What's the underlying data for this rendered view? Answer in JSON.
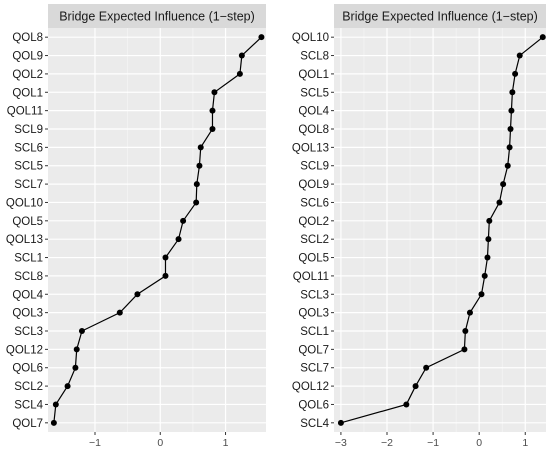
{
  "chart_data": [
    {
      "type": "line",
      "title": "Bridge Expected Influence (1−step)",
      "xlim": [
        -1.72,
        1.62
      ],
      "x_ticks": [
        -1,
        0,
        1
      ],
      "x_tick_labels": [
        "−1",
        "0",
        "1"
      ],
      "grid": true,
      "categories": [
        "QOL8",
        "QOL9",
        "QOL2",
        "QOL1",
        "QOL11",
        "SCL9",
        "SCL6",
        "SCL5",
        "SCL7",
        "QOL10",
        "QOL5",
        "QOL13",
        "SCL1",
        "SCL8",
        "QOL4",
        "QOL3",
        "SCL3",
        "QOL12",
        "QOL6",
        "SCL2",
        "SCL4",
        "QOL7"
      ],
      "values": [
        1.55,
        1.25,
        1.22,
        0.83,
        0.8,
        0.8,
        0.62,
        0.6,
        0.56,
        0.55,
        0.35,
        0.28,
        0.08,
        0.08,
        -0.35,
        -0.62,
        -1.2,
        -1.28,
        -1.3,
        -1.42,
        -1.6,
        -1.63
      ]
    },
    {
      "type": "line",
      "title": "Bridge Expected Influence (1−step)",
      "xlim": [
        -3.15,
        1.45
      ],
      "x_ticks": [
        -3,
        -2,
        -1,
        0,
        1
      ],
      "x_tick_labels": [
        "−3",
        "−2",
        "−1",
        "0",
        "1"
      ],
      "grid": true,
      "categories": [
        "QOL10",
        "SCL8",
        "QOL1",
        "SCL5",
        "QOL4",
        "QOL8",
        "QOL13",
        "SCL9",
        "QOL9",
        "SCL6",
        "QOL2",
        "SCL2",
        "QOL5",
        "QOL11",
        "SCL3",
        "QOL3",
        "SCL1",
        "QOL7",
        "SCL7",
        "QOL12",
        "QOL6",
        "SCL4"
      ],
      "values": [
        1.38,
        0.88,
        0.78,
        0.72,
        0.7,
        0.68,
        0.66,
        0.62,
        0.52,
        0.44,
        0.22,
        0.2,
        0.18,
        0.12,
        0.05,
        -0.2,
        -0.3,
        -0.32,
        -1.15,
        -1.38,
        -1.58,
        -3.0
      ]
    }
  ]
}
